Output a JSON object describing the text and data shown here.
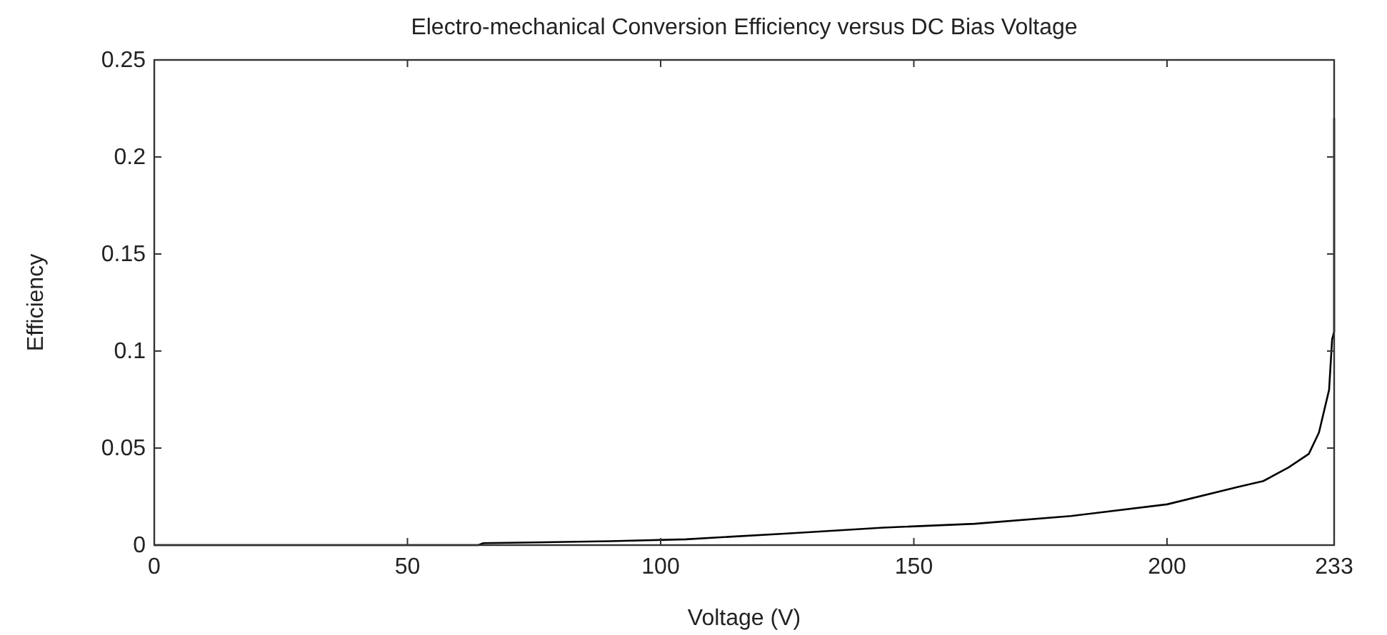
{
  "chart_data": {
    "type": "line",
    "title": "Electro-mechanical Conversion Efficiency versus DC Bias Voltage",
    "xlabel": "Voltage (V)",
    "ylabel": "Efficiency",
    "x": [
      0,
      64,
      65,
      90,
      105,
      125,
      144,
      162,
      181,
      200,
      214,
      219,
      224,
      228,
      230,
      232,
      232.6,
      233,
      233
    ],
    "series": [
      {
        "color": "#000000",
        "values": [
          0,
          0,
          0.001,
          0.002,
          0.003,
          0.006,
          0.009,
          0.011,
          0.015,
          0.021,
          0.03,
          0.033,
          0.04,
          0.047,
          0.058,
          0.08,
          0.106,
          0.11,
          0.22
        ]
      }
    ],
    "xlim": [
      0,
      233
    ],
    "xticks": [
      0,
      50,
      100,
      150,
      200,
      233
    ],
    "ylim": [
      0,
      0.25
    ],
    "yticks": [
      0,
      0.05,
      0.1,
      0.15,
      0.2,
      0.25
    ],
    "grid": false,
    "marker": "none",
    "line_style": "solid"
  }
}
